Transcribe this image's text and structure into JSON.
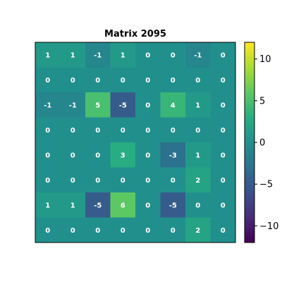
{
  "chart_data": {
    "type": "heatmap",
    "title": "Matrix 2095",
    "rows": [
      [
        1,
        1,
        -1,
        1,
        0,
        0,
        -1,
        0
      ],
      [
        0,
        0,
        0,
        0,
        0,
        0,
        0,
        0
      ],
      [
        -1,
        -1,
        5,
        -5,
        0,
        4,
        1,
        0
      ],
      [
        0,
        0,
        0,
        0,
        0,
        0,
        0,
        0
      ],
      [
        0,
        0,
        0,
        3,
        0,
        -3,
        1,
        0
      ],
      [
        0,
        0,
        0,
        0,
        0,
        0,
        2,
        0
      ],
      [
        1,
        1,
        -5,
        6,
        0,
        -5,
        0,
        0
      ],
      [
        0,
        0,
        0,
        0,
        0,
        0,
        2,
        0
      ]
    ],
    "colorbar": {
      "vmin": -12,
      "vmax": 12,
      "ticks": [
        -10,
        -5,
        0,
        5,
        10
      ],
      "tick_labels": [
        "−10",
        "−5",
        "0",
        "5",
        "10"
      ],
      "colormap": "viridis"
    },
    "cell_labels": true,
    "x_ticks_visible": false,
    "y_ticks_visible": false
  }
}
